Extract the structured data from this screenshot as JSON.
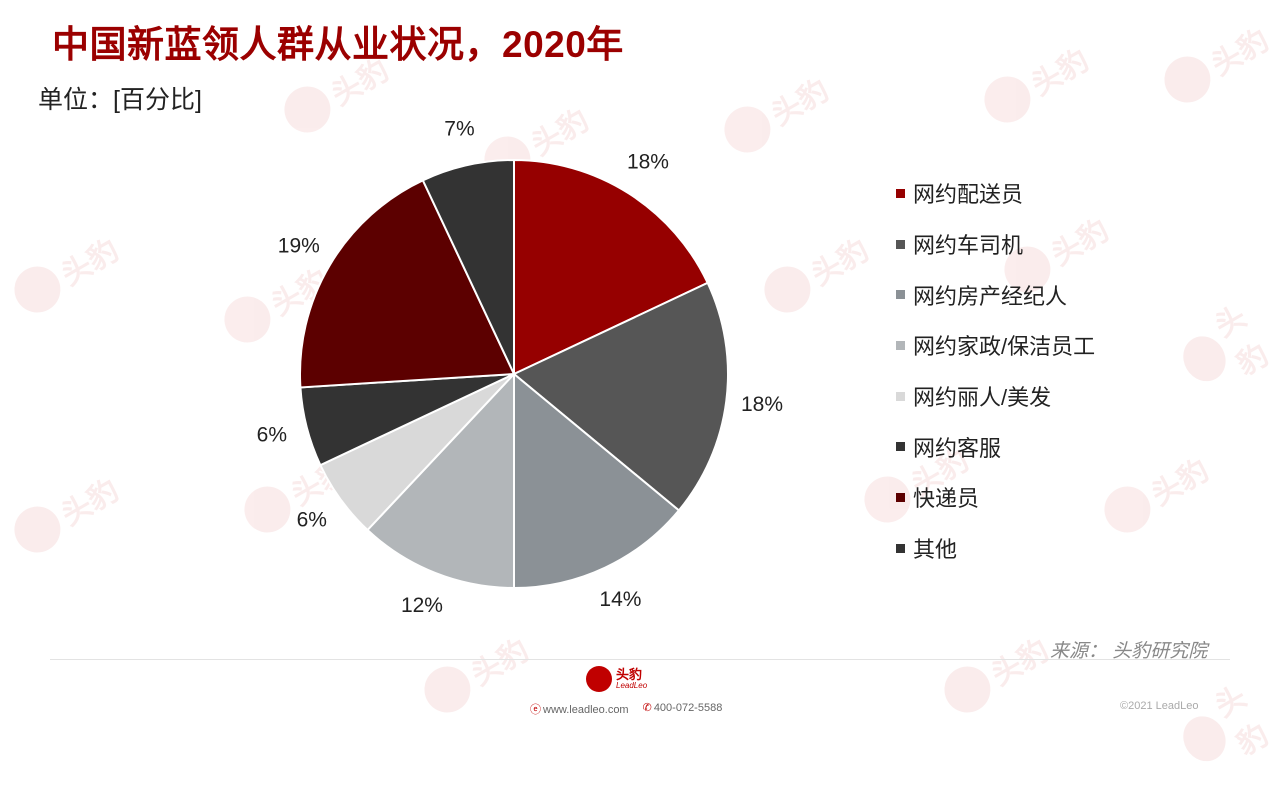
{
  "header": {
    "title": "中国新蓝领人群从业状况，2020年",
    "unit": "单位：[百分比]"
  },
  "colors": {
    "title": "#9b0000",
    "brand": "#c00000"
  },
  "chart_data": {
    "type": "pie",
    "labels": [
      "网约配送员",
      "网约车司机",
      "网约房产经纪人",
      "网约家政/保洁员工",
      "网约丽人/美发",
      "网约客服",
      "快递员",
      "其他"
    ],
    "values": [
      18,
      18,
      14,
      12,
      6,
      6,
      19,
      7
    ],
    "value_labels": [
      "18%",
      "18%",
      "14%",
      "12%",
      "6%",
      "6%",
      "19%",
      "7%"
    ],
    "colors": [
      "#960000",
      "#565656",
      "#8b9196",
      "#b2b6b9",
      "#d9d9d9",
      "#333333",
      "#5c0000",
      "#333333"
    ],
    "legend_position": "right"
  },
  "footer": {
    "source": "来源：  头豹研究院",
    "logo_cn": "头豹",
    "logo_en": "LeadLeo",
    "website": "www.leadleo.com",
    "phone": "400-072-5588",
    "copyright": "©2021 LeadLeo"
  },
  "watermark": {
    "cn": "头豹",
    "en": "LeadLeo"
  }
}
